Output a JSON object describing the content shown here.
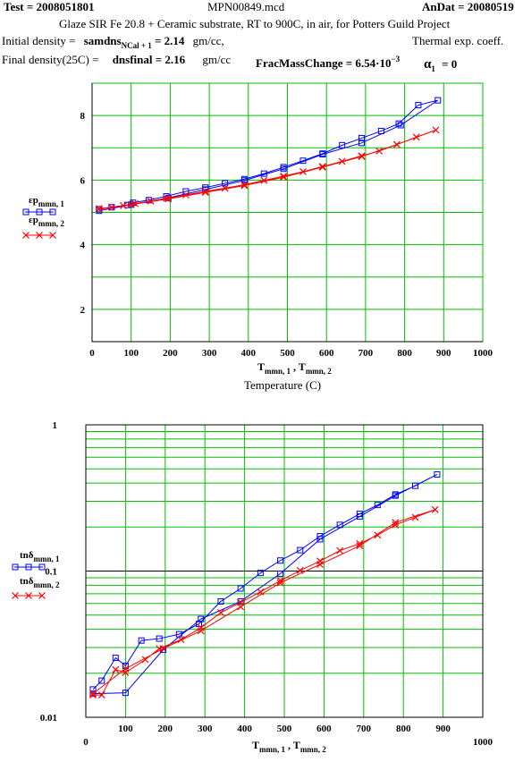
{
  "header": {
    "test_label": "Test = 2008051801",
    "file_label": "MPN00849.mcd",
    "andat_label": "AnDat = 20080519",
    "description": "Glaze SIR Fe 20.8 + Ceramic substrate, RT to 900C, in  air, for Potters Guild Project",
    "initial_density_prefix": "Initial density =",
    "initial_density_var": "samdns",
    "initial_density_sub": "NCal + 1",
    "initial_density_value": "= 2.14",
    "initial_density_unit": "gm/cc,",
    "thermal_label": "Thermal exp. coeff.",
    "final_density_prefix": "Final density(25C) =",
    "final_density_expr": "dnsfinal = 2.16",
    "final_density_unit": "gm/cc",
    "frac_mass_label": "FracMassChange  = 6.54·10",
    "frac_mass_exp": "−3",
    "alpha_label": "α",
    "alpha_sub": "1",
    "alpha_value": "= 0"
  },
  "colors": {
    "grid": "#00c000",
    "blue": "#0000ff",
    "red": "#ff0000",
    "axis": "#000000"
  },
  "chart_data": [
    {
      "type": "line",
      "title": "",
      "xlabel_main": "T",
      "xlabel_sub1": "mmn, 1",
      "xlabel_sep": " , T",
      "xlabel_sub2": "mmn, 2",
      "xlabel2": "Temperature (C)",
      "xlim": [
        0,
        1000
      ],
      "ylim": [
        1,
        9
      ],
      "x_ticks": [
        "0",
        "100",
        "200",
        "300",
        "400",
        "500",
        "600",
        "700",
        "800",
        "900",
        "1000"
      ],
      "y_ticks": [
        {
          "v": 2,
          "label": "2"
        },
        {
          "v": 4,
          "label": "4"
        },
        {
          "v": 6,
          "label": "6"
        },
        {
          "v": 8,
          "label": "8"
        }
      ],
      "grid": true,
      "legend_position": "left",
      "series": [
        {
          "name": "εp",
          "name_sub": "mmn, 1",
          "color": "blue",
          "marker": "square",
          "x": [
            18,
            50,
            90,
            105,
            145,
            190,
            240,
            290,
            340,
            390,
            440,
            490,
            540,
            590,
            640,
            690,
            740,
            785,
            835,
            885,
            790,
            690,
            590,
            490,
            390,
            290,
            195,
            100,
            18
          ],
          "y": [
            5.1,
            5.16,
            5.23,
            5.3,
            5.38,
            5.5,
            5.65,
            5.77,
            5.9,
            6.03,
            6.2,
            6.4,
            6.6,
            6.82,
            7.08,
            7.3,
            7.52,
            7.75,
            8.32,
            8.47,
            7.7,
            7.15,
            6.8,
            6.35,
            5.99,
            5.71,
            5.45,
            5.24,
            5.05
          ]
        },
        {
          "name": "εp",
          "name_sub": "mmn, 2",
          "color": "red",
          "marker": "x",
          "x": [
            18,
            50,
            80,
            110,
            150,
            190,
            240,
            290,
            340,
            390,
            440,
            490,
            540,
            590,
            640,
            690,
            735,
            780,
            830,
            880,
            780,
            690,
            590,
            490,
            390,
            290,
            195,
            100,
            18
          ],
          "y": [
            5.12,
            5.16,
            5.21,
            5.27,
            5.35,
            5.43,
            5.54,
            5.65,
            5.75,
            5.86,
            5.99,
            6.12,
            6.26,
            6.42,
            6.58,
            6.75,
            6.9,
            7.1,
            7.33,
            7.55,
            7.1,
            6.73,
            6.4,
            6.09,
            5.83,
            5.62,
            5.42,
            5.24,
            5.1
          ]
        }
      ]
    },
    {
      "type": "line",
      "title": "",
      "xlabel_main": "T",
      "xlabel_sub1": "mmn, 1",
      "xlabel_sep": " , T",
      "xlabel_sub2": "mmn, 2",
      "xlim": [
        0,
        1000
      ],
      "ylim": [
        0.01,
        1
      ],
      "y_scale": "log",
      "x_ticks": [
        "100",
        "200",
        "300",
        "400",
        "500",
        "600",
        "700",
        "800",
        "900"
      ],
      "x_end_labels": {
        "min": "0",
        "max": "1000"
      },
      "y_ticks": [
        {
          "v": 1,
          "label": "1"
        },
        {
          "v": 0.1,
          "label": "0.1"
        },
        {
          "v": 0.01,
          "label": "0.01"
        }
      ],
      "grid": true,
      "legend_position": "left",
      "series": [
        {
          "name": "tnδ",
          "name_sub": "mmn, 1",
          "color": "blue",
          "marker": "square",
          "x": [
            18,
            40,
            75,
            100,
            140,
            185,
            235,
            285,
            340,
            390,
            440,
            490,
            540,
            590,
            640,
            690,
            735,
            780,
            830,
            885,
            780,
            690,
            590,
            490,
            390,
            290,
            195,
            100,
            18
          ],
          "y": [
            0.0155,
            0.0178,
            0.0255,
            0.0225,
            0.0335,
            0.0345,
            0.037,
            0.0435,
            0.062,
            0.076,
            0.097,
            0.118,
            0.139,
            0.173,
            0.207,
            0.246,
            0.283,
            0.334,
            0.383,
            0.458,
            0.328,
            0.236,
            0.165,
            0.096,
            0.062,
            0.047,
            0.029,
            0.0147,
            0.0145
          ]
        },
        {
          "name": "tnδ",
          "name_sub": "mmn, 2",
          "color": "red",
          "marker": "x",
          "x": [
            18,
            40,
            75,
            100,
            150,
            185,
            240,
            290,
            340,
            390,
            440,
            490,
            540,
            590,
            640,
            690,
            735,
            780,
            830,
            880,
            780,
            690,
            590,
            490,
            390,
            290,
            195,
            100,
            18
          ],
          "y": [
            0.0142,
            0.0142,
            0.0212,
            0.0202,
            0.0248,
            0.0295,
            0.034,
            0.041,
            0.052,
            0.061,
            0.072,
            0.086,
            0.101,
            0.117,
            0.138,
            0.154,
            0.176,
            0.207,
            0.233,
            0.263,
            0.215,
            0.149,
            0.111,
            0.083,
            0.057,
            0.039,
            0.0295,
            0.0215,
            0.0145
          ]
        }
      ]
    }
  ]
}
